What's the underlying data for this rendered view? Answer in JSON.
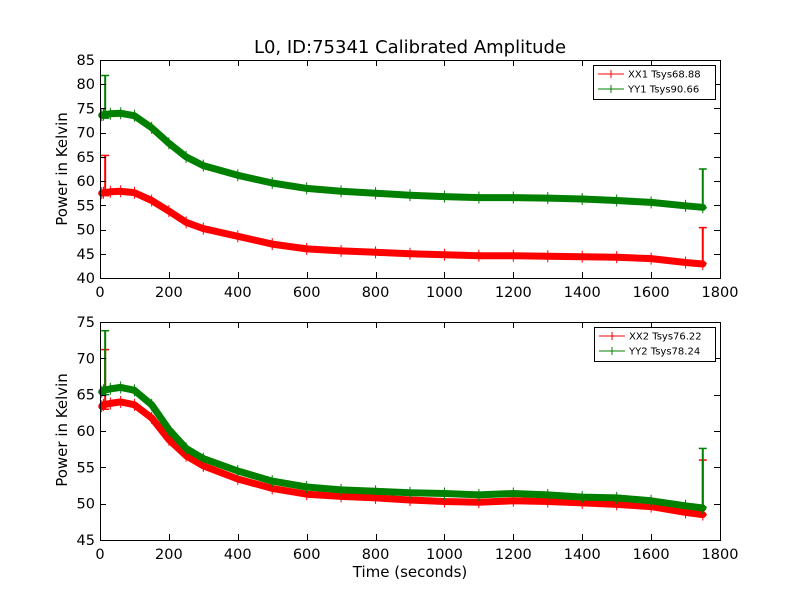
{
  "chart_data": [
    {
      "type": "line",
      "title": "L0, ID:75341 Calibrated Amplitude",
      "xlabel": "",
      "ylabel": "Power in Kelvin",
      "xlim": [
        0,
        1800
      ],
      "ylim": [
        40,
        85
      ],
      "xticks": [
        0,
        200,
        400,
        600,
        800,
        1000,
        1200,
        1400,
        1600,
        1800
      ],
      "yticks": [
        40,
        45,
        50,
        55,
        60,
        65,
        70,
        75,
        80,
        85
      ],
      "grid": false,
      "legend_position": "top-right",
      "series": [
        {
          "name": "XX1 Tsys68.88",
          "color": "#ff0000",
          "x": [
            5,
            10,
            30,
            60,
            100,
            150,
            200,
            250,
            300,
            400,
            500,
            600,
            700,
            800,
            900,
            1000,
            1100,
            1200,
            1300,
            1400,
            1500,
            1600,
            1700,
            1750
          ],
          "y": [
            57.5,
            57.6,
            57.8,
            57.9,
            57.6,
            56.0,
            53.8,
            51.5,
            50.2,
            48.6,
            47.0,
            46.0,
            45.6,
            45.3,
            45.0,
            44.8,
            44.6,
            44.6,
            44.5,
            44.4,
            44.3,
            44.0,
            43.2,
            42.9
          ],
          "spikes": [
            {
              "x": 15,
              "y0": 57,
              "y1": 65.3
            },
            {
              "x": 1750,
              "y0": 43,
              "y1": 50.4
            }
          ]
        },
        {
          "name": "YY1 Tsys90.66",
          "color": "#008000",
          "x": [
            5,
            10,
            30,
            60,
            100,
            150,
            200,
            250,
            300,
            400,
            500,
            600,
            700,
            800,
            900,
            1000,
            1100,
            1200,
            1300,
            1400,
            1500,
            1600,
            1700,
            1750
          ],
          "y": [
            73.6,
            73.7,
            73.9,
            74.0,
            73.5,
            71.0,
            67.8,
            65.0,
            63.2,
            61.2,
            59.6,
            58.5,
            57.9,
            57.5,
            57.1,
            56.8,
            56.6,
            56.6,
            56.5,
            56.3,
            56.0,
            55.6,
            54.9,
            54.6
          ],
          "spikes": [
            {
              "x": 15,
              "y0": 73,
              "y1": 81.8
            },
            {
              "x": 1750,
              "y0": 54.5,
              "y1": 62.5
            }
          ]
        }
      ]
    },
    {
      "type": "line",
      "title": "",
      "xlabel": "Time (seconds)",
      "ylabel": "Power in Kelvin",
      "xlim": [
        0,
        1800
      ],
      "ylim": [
        45,
        75
      ],
      "xticks": [
        0,
        200,
        400,
        600,
        800,
        1000,
        1200,
        1400,
        1600,
        1800
      ],
      "yticks": [
        45,
        50,
        55,
        60,
        65,
        70,
        75
      ],
      "grid": false,
      "legend_position": "top-right",
      "series": [
        {
          "name": "XX2 Tsys76.22",
          "color": "#ff0000",
          "x": [
            5,
            10,
            30,
            60,
            100,
            150,
            200,
            250,
            300,
            400,
            500,
            600,
            700,
            800,
            900,
            1000,
            1100,
            1200,
            1300,
            1400,
            1500,
            1600,
            1700,
            1750
          ],
          "y": [
            63.4,
            63.6,
            63.8,
            64.0,
            63.6,
            61.8,
            58.8,
            56.6,
            55.2,
            53.4,
            52.1,
            51.3,
            51.0,
            50.8,
            50.5,
            50.3,
            50.2,
            50.4,
            50.3,
            50.1,
            49.9,
            49.6,
            48.8,
            48.5
          ],
          "spikes": [
            {
              "x": 15,
              "y0": 63,
              "y1": 71.2
            },
            {
              "x": 1750,
              "y0": 48.5,
              "y1": 56.0
            }
          ]
        },
        {
          "name": "YY2 Tsys78.24",
          "color": "#008000",
          "x": [
            5,
            10,
            30,
            60,
            100,
            150,
            200,
            250,
            300,
            400,
            500,
            600,
            700,
            800,
            900,
            1000,
            1100,
            1200,
            1300,
            1400,
            1500,
            1600,
            1700,
            1750
          ],
          "y": [
            65.4,
            65.6,
            65.8,
            66.0,
            65.6,
            63.6,
            60.2,
            57.6,
            56.2,
            54.5,
            53.1,
            52.3,
            51.9,
            51.7,
            51.5,
            51.4,
            51.2,
            51.4,
            51.2,
            50.9,
            50.8,
            50.4,
            49.7,
            49.4
          ],
          "spikes": [
            {
              "x": 15,
              "y0": 65,
              "y1": 73.8
            },
            {
              "x": 1750,
              "y0": 49.5,
              "y1": 57.6
            }
          ]
        }
      ]
    }
  ]
}
